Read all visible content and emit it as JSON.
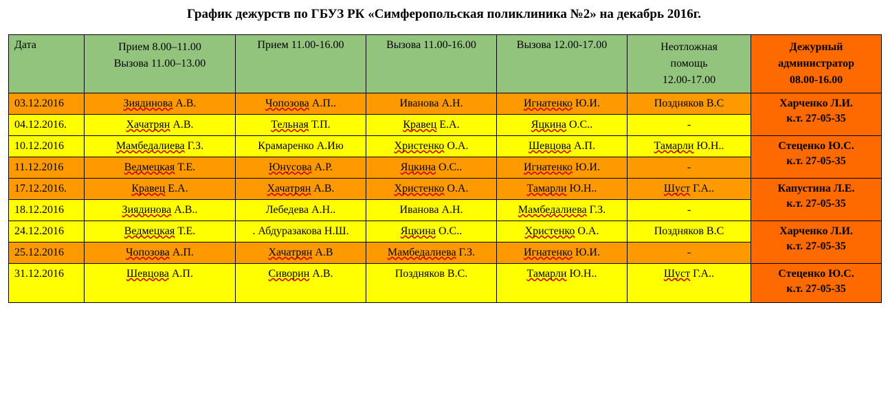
{
  "title": "График дежурств по ГБУЗ РК «Симферопольская поликлиника №2» на декабрь 2016г.",
  "colWidths": [
    "110px",
    "220px",
    "190px",
    "190px",
    "190px",
    "180px",
    "190px"
  ],
  "headers": {
    "c0": "Дата",
    "c1a": "Прием 8.00–11.00",
    "c1b": "Вызова 11.00–13.00",
    "c2": "Прием 11.00-16.00",
    "c3": "Вызова 11.00-16.00",
    "c4": "Вызова 12.00-17.00",
    "c5a": "Неотложная",
    "c5b": "помощь",
    "c5c": "12.00-17.00",
    "c6a": "Дежурный",
    "c6b": "администратор",
    "c6c": "08.00-16.00"
  },
  "rows": [
    {
      "date": "03.12.2016",
      "color": "orange",
      "c1s": "Зиядинова",
      "c1r": " А.В.",
      "c2s": "Чопозова",
      "c2r": " А.П..",
      "c3s": "",
      "c3r": "Иванова А.Н.",
      "c4s": "Игнатенко",
      "c4r": " Ю.И.",
      "c5s": "",
      "c5r": "Поздняков В.С"
    },
    {
      "date": "04.12.2016.",
      "color": "yellow",
      "c1s": "Хачатрян",
      "c1r": " А.В.",
      "c2s": "Тельная",
      "c2r": " Т.П.",
      "c3s": "Кравец",
      "c3r": " Е.А.",
      "c4s": "Яцкина",
      "c4r": " О.С..",
      "c5s": "",
      "c5r": "-"
    },
    {
      "date": "10.12.2016",
      "color": "yellow",
      "c1s": "Мамбедалиева",
      "c1r": " Г.З.",
      "c2s": "",
      "c2r": "Крамаренко А.Ию",
      "c3s": "Христенко",
      "c3r": " О.А.",
      "c4s": "Шевцова",
      "c4r": " А.П.",
      "c5s": "Тамарли",
      "c5r": " Ю.Н.."
    },
    {
      "date": "11.12.2016",
      "color": "orange",
      "c1s": "Ведмецкая",
      "c1r": " Т.Е.",
      "c2s": "Юнусова",
      "c2r": " А.Р.",
      "c3s": "Яцкина",
      "c3r": " О.С..",
      "c4s": "Игнатенко",
      "c4r": " Ю.И.",
      "c5s": "",
      "c5r": "-"
    },
    {
      "date": "17.12.2016.",
      "color": "orange",
      "c1s": "Кравец",
      "c1r": " Е.А.",
      "c2s": "Хачатрян",
      "c2r": " А.В.",
      "c3s": "Христенко",
      "c3r": " О.А.",
      "c4s": "Тамарли",
      "c4r": " Ю.Н..",
      "c5s": "Шуст",
      "c5r": " Г.А.."
    },
    {
      "date": "18.12.2016",
      "color": "yellow",
      "c1s": "Зиядинова",
      "c1r": " А.В..",
      "c2s": "",
      "c2r": "Лебедева А.Н..",
      "c3s": "",
      "c3r": "Иванова А.Н.",
      "c4s": "Мамбедалиева",
      "c4r": " Г.З.",
      "c5s": "",
      "c5r": "-"
    },
    {
      "date": "24.12.2016",
      "color": "yellow",
      "c1s": "Ведмецкая",
      "c1r": " Т.Е.",
      "c2s": "",
      "c2r": ". Абдуразакова Н.Ш.",
      "c3s": "Яцкина",
      "c3r": " О.С..",
      "c4s": "Христенко",
      "c4r": " О.А.",
      "c5s": "",
      "c5r": "Поздняков В.С"
    },
    {
      "date": "25.12.2016",
      "color": "orange",
      "c1s": "Чопозова",
      "c1r": " А.П.",
      "c2s": "Хачатрян",
      "c2r": " А.В",
      "c3s": "Мамбедалиева",
      "c3r": " Г.З.",
      "c4s": "Игнатенко",
      "c4r": " Ю.И.",
      "c5s": "",
      "c5r": "-"
    },
    {
      "date": "31.12.2016",
      "color": "yellow",
      "c1s": "Шевцова",
      "c1r": " А.П.",
      "c2s": "Сиворин",
      "c2r": " А.В.",
      "c3s": "",
      "c3r": "Поздняков В.С.",
      "c4s": "Тамарли",
      "c4r": " Ю.Н..",
      "c5s": "Шуст",
      "c5r": " Г.А.."
    }
  ],
  "admins": [
    {
      "name": "Харченко Л.И.",
      "phone": "к.т. 27-05-35",
      "span": 2
    },
    {
      "name": "Стеценко Ю.С.",
      "phone": "к.т. 27-05-35",
      "span": 2
    },
    {
      "name": "Капустина Л.Е.",
      "phone": "к.т. 27-05-35",
      "span": 2
    },
    {
      "name": "Харченко Л.И.",
      "phone": "к.т. 27-05-35",
      "span": 2
    },
    {
      "name": "Стеценко Ю.С.",
      "phone": "к.т. 27-05-35",
      "span": 1
    }
  ]
}
